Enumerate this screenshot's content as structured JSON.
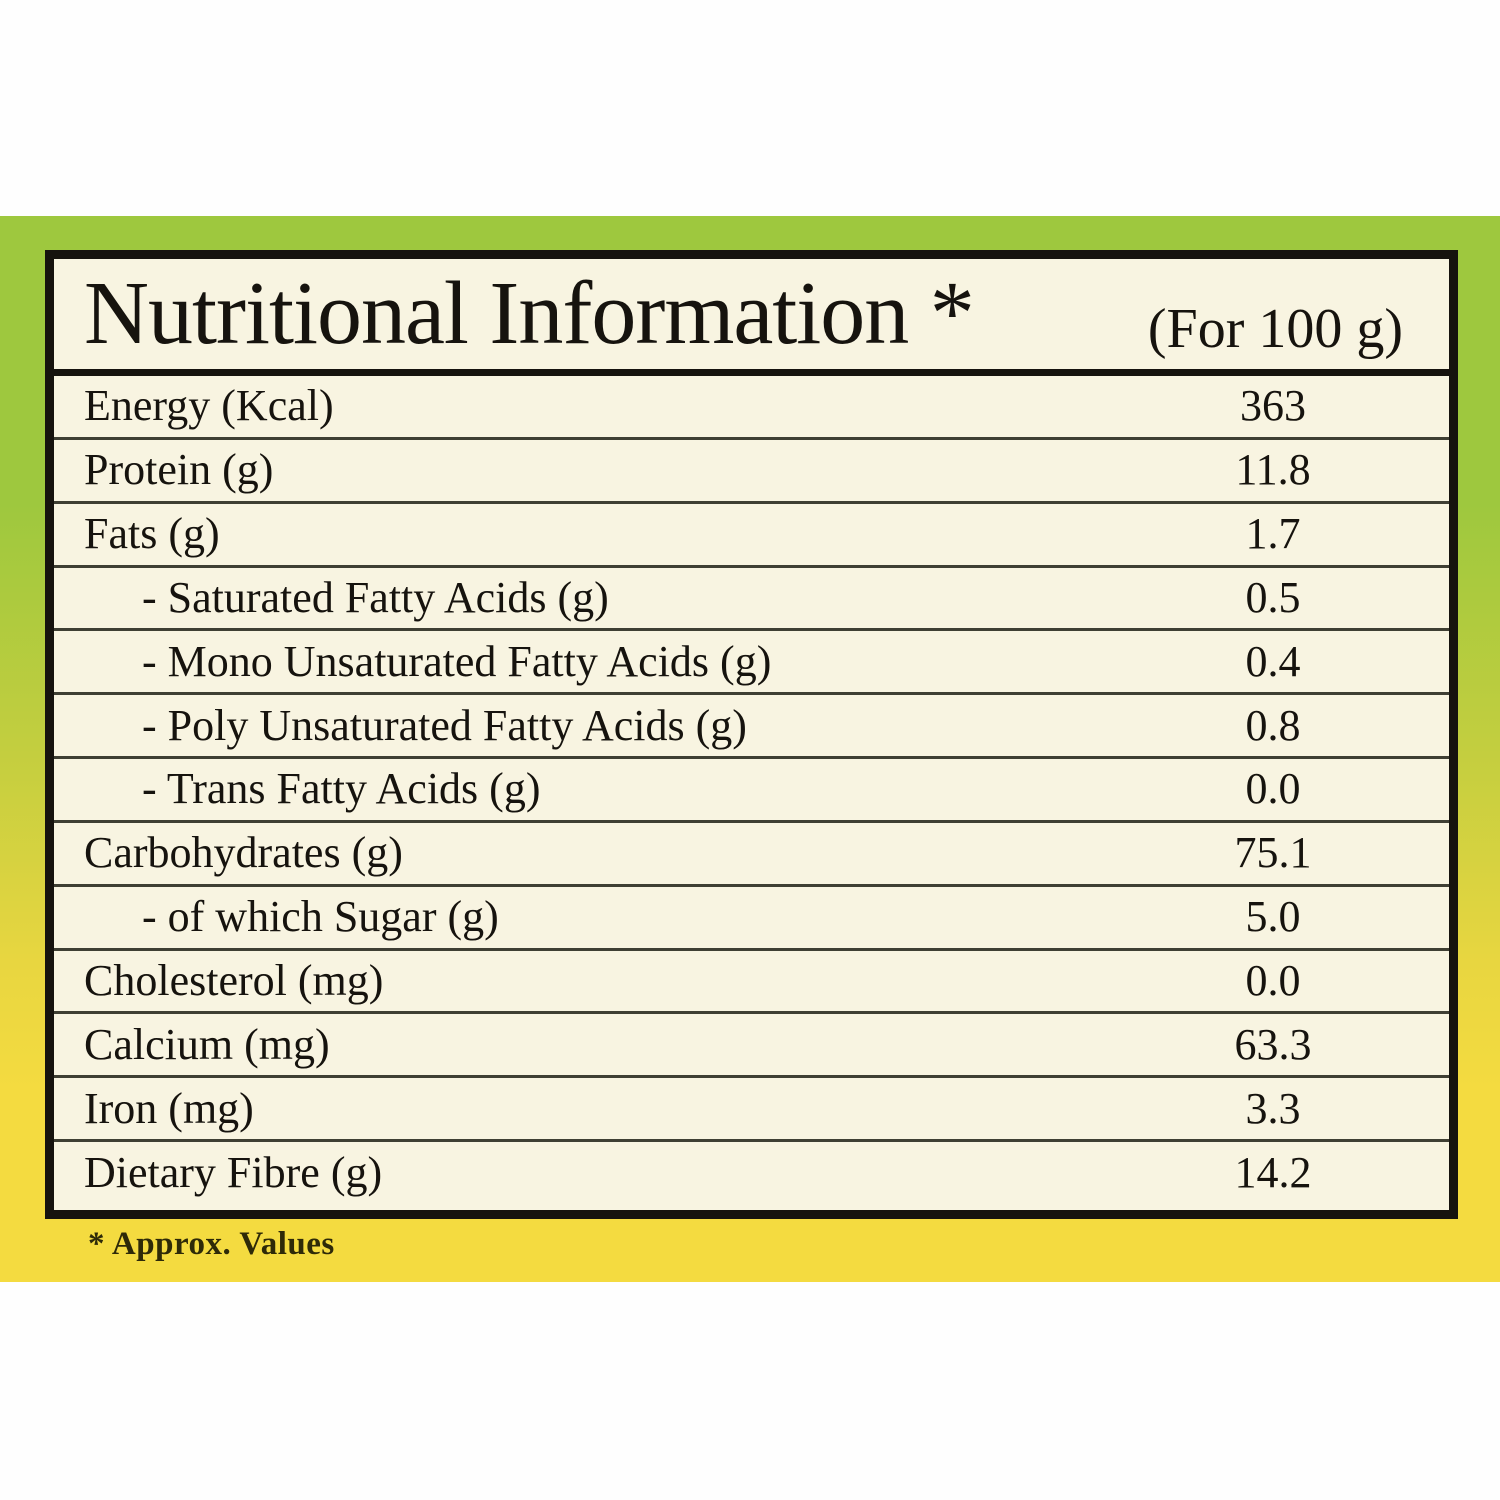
{
  "header": {
    "title": "Nutritional Information *",
    "serving_note": "(For 100 g)"
  },
  "table": {
    "rows": [
      {
        "label": "Energy (Kcal)",
        "value": "363",
        "indent": false
      },
      {
        "label": "Protein (g)",
        "value": "11.8",
        "indent": false
      },
      {
        "label": "Fats (g)",
        "value": "1.7",
        "indent": false
      },
      {
        "label": "- Saturated Fatty Acids (g)",
        "value": "0.5",
        "indent": true
      },
      {
        "label": "- Mono Unsaturated Fatty Acids (g)",
        "value": "0.4",
        "indent": true
      },
      {
        "label": "- Poly Unsaturated Fatty Acids (g)",
        "value": "0.8",
        "indent": true
      },
      {
        "label": "- Trans Fatty Acids (g)",
        "value": "0.0",
        "indent": true
      },
      {
        "label": "Carbohydrates (g)",
        "value": "75.1",
        "indent": false
      },
      {
        "label": "- of which Sugar (g)",
        "value": "5.0",
        "indent": true
      },
      {
        "label": "Cholesterol (mg)",
        "value": "0.0",
        "indent": false
      },
      {
        "label": "Calcium (mg)",
        "value": "63.3",
        "indent": false
      },
      {
        "label": "Iron (mg)",
        "value": "3.3",
        "indent": false
      },
      {
        "label": "Dietary Fibre (g)",
        "value": "14.2",
        "indent": false
      }
    ]
  },
  "footnote": "* Approx. Values",
  "colors": {
    "band_green": "#9ec83e",
    "band_yellow": "#f4db40",
    "table_bg": "#f8f4e1",
    "border_black": "#16130e",
    "separator": "#3f3f33",
    "footnote_text": "#2e2a08"
  }
}
